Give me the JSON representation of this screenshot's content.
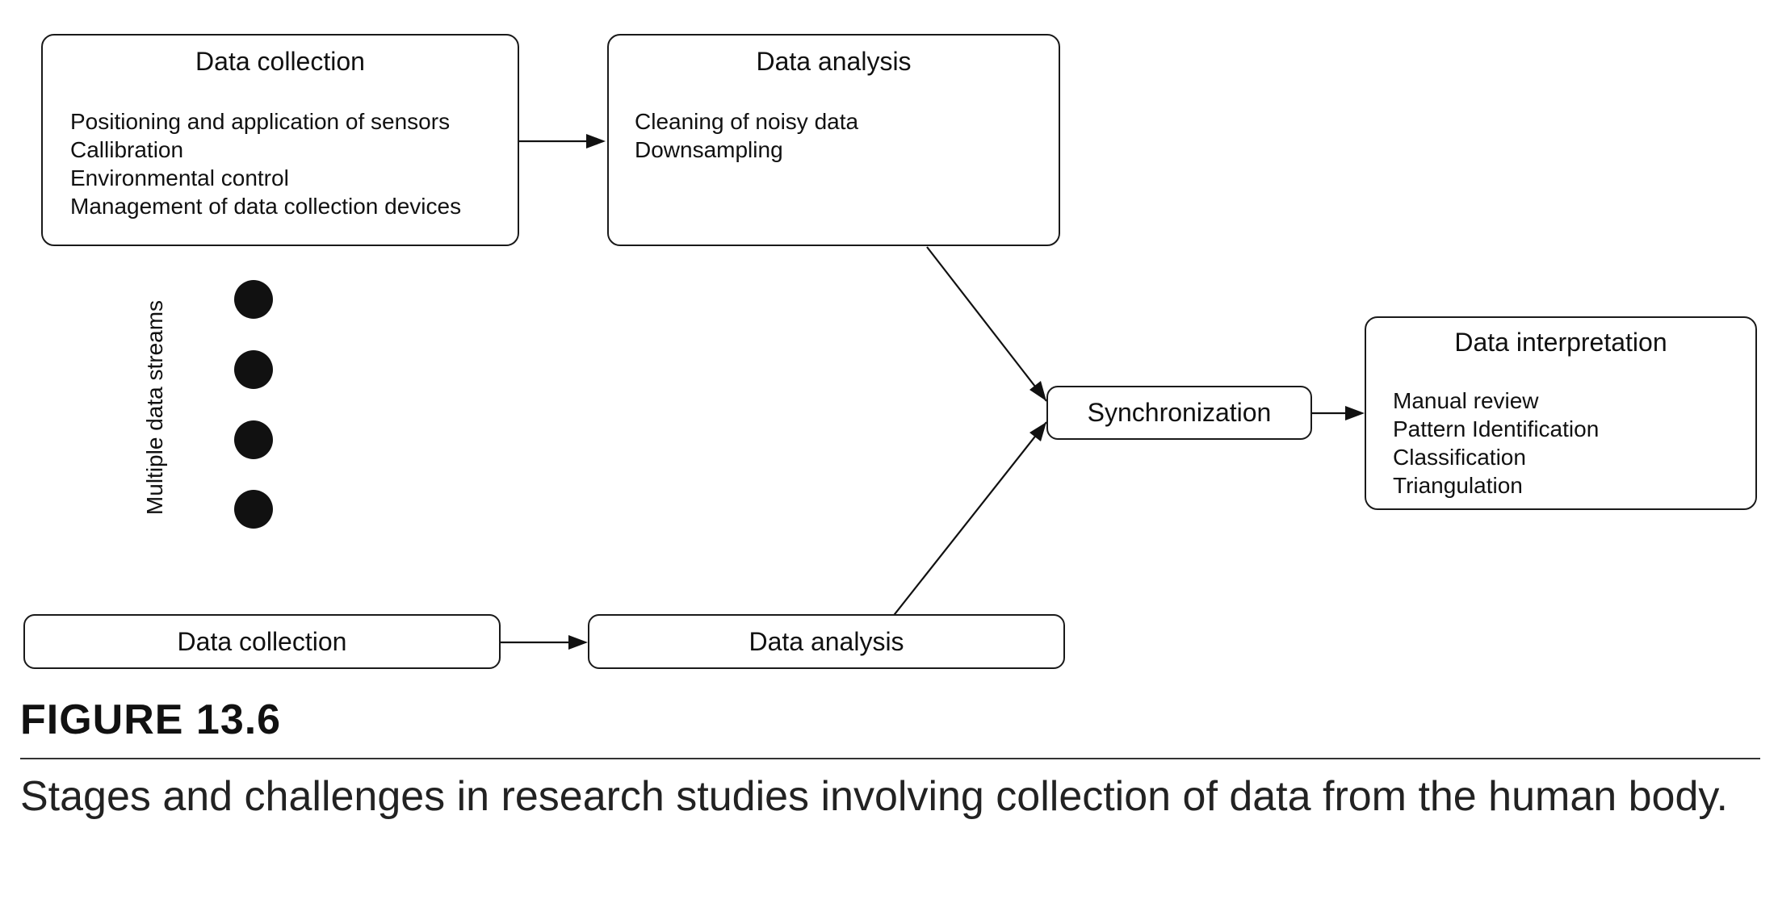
{
  "diagram": {
    "top_collection": {
      "title": "Data collection",
      "items": [
        "Positioning and application of sensors",
        "Callibration",
        "Environmental control",
        "Management of data collection devices"
      ]
    },
    "top_analysis": {
      "title": "Data analysis",
      "items": [
        "Cleaning of noisy data",
        "Downsampling"
      ]
    },
    "streams_label": "Multiple data streams",
    "synchronization": {
      "label": "Synchronization"
    },
    "interpretation": {
      "title": "Data interpretation",
      "items": [
        "Manual review",
        "Pattern Identification",
        "Classification",
        "Triangulation"
      ]
    },
    "bottom_collection": {
      "label": "Data collection"
    },
    "bottom_analysis": {
      "label": "Data analysis"
    }
  },
  "figure": {
    "label": "FIGURE 13.6",
    "caption": "Stages and challenges in research studies involving collection of data from the human body."
  }
}
